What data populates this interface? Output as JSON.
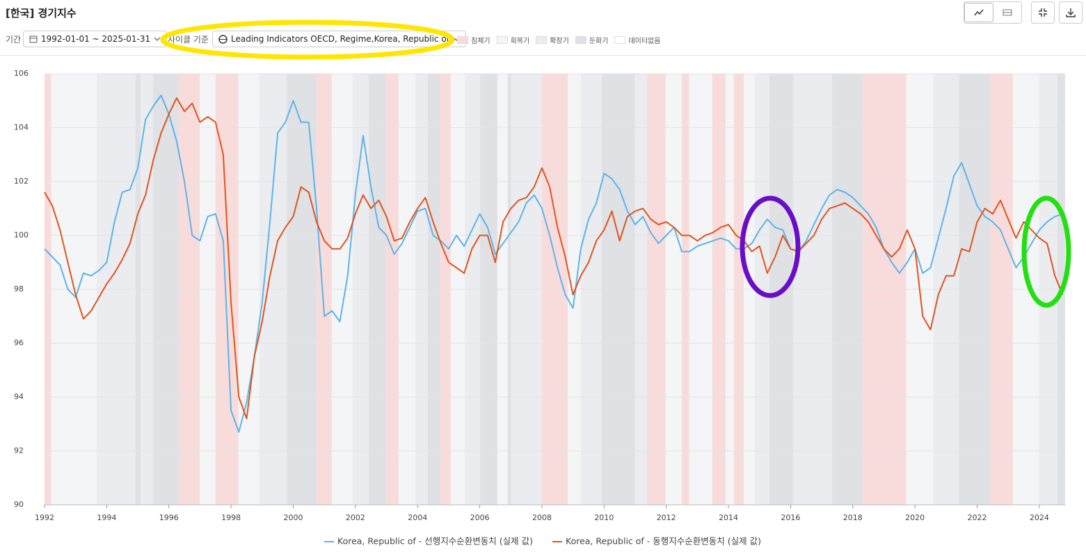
{
  "header": {
    "title": "[한국] 경기지수",
    "period_label": "기간",
    "period": "1992-01-01 ~ 2025-01-31",
    "cycle_label": "사이클 기준",
    "cycle": "Leading Indicators OECD, Regime,Korea, Republic of"
  },
  "chart_data": {
    "type": "line",
    "phases": [
      {
        "name": "침체기",
        "color": "#f8dcdc"
      },
      {
        "name": "회복기",
        "color": "#f4f5f7"
      },
      {
        "name": "확장기",
        "color": "#ebecf0"
      },
      {
        "name": "둔화기",
        "color": "#dfe1e5"
      },
      {
        "name": "데이터없음",
        "color": "#ffffff"
      }
    ],
    "bands": [
      {
        "start": 1992.0,
        "end": 1992.22,
        "phase": 0
      },
      {
        "start": 1992.22,
        "end": 1993.68,
        "phase": 1
      },
      {
        "start": 1993.68,
        "end": 1994.93,
        "phase": 2
      },
      {
        "start": 1994.93,
        "end": 1995.09,
        "phase": 3
      },
      {
        "start": 1995.09,
        "end": 1995.49,
        "phase": 2
      },
      {
        "start": 1995.49,
        "end": 1996.32,
        "phase": 3
      },
      {
        "start": 1996.32,
        "end": 1996.99,
        "phase": 0
      },
      {
        "start": 1996.99,
        "end": 1997.5,
        "phase": 1
      },
      {
        "start": 1997.5,
        "end": 1998.24,
        "phase": 0
      },
      {
        "start": 1998.24,
        "end": 1998.91,
        "phase": 1
      },
      {
        "start": 1998.91,
        "end": 1999.79,
        "phase": 2
      },
      {
        "start": 1999.79,
        "end": 2000.75,
        "phase": 3
      },
      {
        "start": 2000.75,
        "end": 2001.24,
        "phase": 0
      },
      {
        "start": 2001.24,
        "end": 2001.91,
        "phase": 1
      },
      {
        "start": 2001.91,
        "end": 2002.43,
        "phase": 2
      },
      {
        "start": 2002.43,
        "end": 2002.99,
        "phase": 3
      },
      {
        "start": 2002.99,
        "end": 2003.39,
        "phase": 0
      },
      {
        "start": 2003.39,
        "end": 2003.93,
        "phase": 1
      },
      {
        "start": 2003.93,
        "end": 2004.33,
        "phase": 2
      },
      {
        "start": 2004.33,
        "end": 2004.73,
        "phase": 3
      },
      {
        "start": 2004.73,
        "end": 2005.07,
        "phase": 0
      },
      {
        "start": 2005.07,
        "end": 2005.52,
        "phase": 1
      },
      {
        "start": 2005.52,
        "end": 2006.01,
        "phase": 2
      },
      {
        "start": 2006.01,
        "end": 2006.57,
        "phase": 3
      },
      {
        "start": 2006.57,
        "end": 2006.9,
        "phase": 1
      },
      {
        "start": 2006.9,
        "end": 2007.01,
        "phase": 3
      },
      {
        "start": 2007.01,
        "end": 2008.0,
        "phase": 2
      },
      {
        "start": 2008.0,
        "end": 2008.83,
        "phase": 0
      },
      {
        "start": 2008.83,
        "end": 2009.25,
        "phase": 1
      },
      {
        "start": 2009.25,
        "end": 2009.92,
        "phase": 2
      },
      {
        "start": 2009.92,
        "end": 2010.99,
        "phase": 3
      },
      {
        "start": 2010.99,
        "end": 2011.38,
        "phase": 2
      },
      {
        "start": 2011.38,
        "end": 2011.98,
        "phase": 0
      },
      {
        "start": 2011.98,
        "end": 2012.5,
        "phase": 1
      },
      {
        "start": 2012.5,
        "end": 2012.74,
        "phase": 0
      },
      {
        "start": 2012.74,
        "end": 2013.48,
        "phase": 1
      },
      {
        "start": 2013.48,
        "end": 2013.91,
        "phase": 0
      },
      {
        "start": 2013.91,
        "end": 2014.17,
        "phase": 1
      },
      {
        "start": 2014.17,
        "end": 2014.49,
        "phase": 0
      },
      {
        "start": 2014.49,
        "end": 2014.85,
        "phase": 1
      },
      {
        "start": 2014.85,
        "end": 2015.32,
        "phase": 2
      },
      {
        "start": 2015.32,
        "end": 2016.08,
        "phase": 3
      },
      {
        "start": 2016.08,
        "end": 2017.33,
        "phase": 2
      },
      {
        "start": 2017.33,
        "end": 2018.32,
        "phase": 3
      },
      {
        "start": 2018.32,
        "end": 2019.72,
        "phase": 0
      },
      {
        "start": 2019.72,
        "end": 2020.59,
        "phase": 1
      },
      {
        "start": 2020.59,
        "end": 2021.42,
        "phase": 2
      },
      {
        "start": 2021.42,
        "end": 2022.43,
        "phase": 3
      },
      {
        "start": 2022.43,
        "end": 2023.15,
        "phase": 0
      },
      {
        "start": 2023.15,
        "end": 2023.99,
        "phase": 1
      },
      {
        "start": 2023.99,
        "end": 2024.58,
        "phase": 2
      },
      {
        "start": 2024.58,
        "end": 2024.83,
        "phase": 3
      }
    ],
    "x": [
      1992,
      1992.25,
      1992.5,
      1992.75,
      1993,
      1993.25,
      1993.5,
      1993.75,
      1994,
      1994.25,
      1994.5,
      1994.75,
      1995,
      1995.25,
      1995.5,
      1995.75,
      1996,
      1996.25,
      1996.5,
      1996.75,
      1997,
      1997.25,
      1997.5,
      1997.75,
      1998,
      1998.25,
      1998.5,
      1998.75,
      1999,
      1999.25,
      1999.5,
      1999.75,
      2000,
      2000.25,
      2000.5,
      2000.75,
      2001,
      2001.25,
      2001.5,
      2001.75,
      2002,
      2002.25,
      2002.5,
      2002.75,
      2003,
      2003.25,
      2003.5,
      2003.75,
      2004,
      2004.25,
      2004.5,
      2004.75,
      2005,
      2005.25,
      2005.5,
      2005.75,
      2006,
      2006.25,
      2006.5,
      2006.75,
      2007,
      2007.25,
      2007.5,
      2007.75,
      2008,
      2008.25,
      2008.5,
      2008.75,
      2009,
      2009.25,
      2009.5,
      2009.75,
      2010,
      2010.25,
      2010.5,
      2010.75,
      2011,
      2011.25,
      2011.5,
      2011.75,
      2012,
      2012.25,
      2012.5,
      2012.75,
      2013,
      2013.25,
      2013.5,
      2013.75,
      2014,
      2014.25,
      2014.5,
      2014.75,
      2015,
      2015.25,
      2015.5,
      2015.75,
      2016,
      2016.25,
      2016.5,
      2016.75,
      2017,
      2017.25,
      2017.5,
      2017.75,
      2018,
      2018.25,
      2018.5,
      2018.75,
      2019,
      2019.25,
      2019.5,
      2019.75,
      2020,
      2020.25,
      2020.5,
      2020.75,
      2021,
      2021.25,
      2021.5,
      2021.75,
      2022,
      2022.25,
      2022.5,
      2022.75,
      2023,
      2023.25,
      2023.5,
      2023.75,
      2024,
      2024.25,
      2024.5,
      2024.75
    ],
    "series": [
      {
        "name": "Korea, Republic of - 선행지수순환변동치 (실제 값)",
        "color": "#5ab4ea",
        "values": [
          99.5,
          99.2,
          98.9,
          98.0,
          97.7,
          98.6,
          98.5,
          98.7,
          99.0,
          100.5,
          101.6,
          101.7,
          102.5,
          104.3,
          104.8,
          105.2,
          104.5,
          103.5,
          102.0,
          100.0,
          99.8,
          100.7,
          100.8,
          99.8,
          93.5,
          92.7,
          93.8,
          95.5,
          97.5,
          100.5,
          103.8,
          104.2,
          105.0,
          104.2,
          104.2,
          101.0,
          97.0,
          97.2,
          96.8,
          98.5,
          101.5,
          103.7,
          101.8,
          100.3,
          100.0,
          99.3,
          99.7,
          100.3,
          100.9,
          101.0,
          100.0,
          99.8,
          99.5,
          100.0,
          99.6,
          100.2,
          100.8,
          100.3,
          99.3,
          99.7,
          100.1,
          100.5,
          101.2,
          101.5,
          101.0,
          100.0,
          98.8,
          97.8,
          97.3,
          99.5,
          100.6,
          101.2,
          102.3,
          102.1,
          101.7,
          100.9,
          100.4,
          100.7,
          100.1,
          99.7,
          100.0,
          100.3,
          99.4,
          99.4,
          99.6,
          99.7,
          99.8,
          99.9,
          99.8,
          99.5,
          99.5,
          99.7,
          100.2,
          100.6,
          100.3,
          100.2,
          99.5,
          99.4,
          99.8,
          100.4,
          101.0,
          101.5,
          101.7,
          101.6,
          101.4,
          101.1,
          100.8,
          100.3,
          99.5,
          99.0,
          98.6,
          99.0,
          99.5,
          98.6,
          98.8,
          99.9,
          101.0,
          102.2,
          102.7,
          101.9,
          101.1,
          100.7,
          100.5,
          100.2,
          99.5,
          98.8,
          99.2,
          99.7,
          100.2,
          100.5,
          100.7,
          100.8
        ]
      },
      {
        "name": "Korea, Republic of - 동행지수순환변동치 (실제 값)",
        "color": "#e0541c",
        "values": [
          101.6,
          101.1,
          100.2,
          99.0,
          97.8,
          96.9,
          97.2,
          97.7,
          98.2,
          98.6,
          99.1,
          99.7,
          100.8,
          101.5,
          102.8,
          103.8,
          104.5,
          105.1,
          104.6,
          104.9,
          104.2,
          104.4,
          104.2,
          103.0,
          97.5,
          94.0,
          93.2,
          95.5,
          96.8,
          98.5,
          99.8,
          100.3,
          100.7,
          101.8,
          101.6,
          100.5,
          99.8,
          99.5,
          99.5,
          99.9,
          100.8,
          101.5,
          101.0,
          101.3,
          100.7,
          99.8,
          99.9,
          100.5,
          101.0,
          101.4,
          100.5,
          99.7,
          99.0,
          98.8,
          98.6,
          99.5,
          100.0,
          100.0,
          99.0,
          100.5,
          101.0,
          101.3,
          101.4,
          101.8,
          102.5,
          101.8,
          100.3,
          99.2,
          97.8,
          98.5,
          99.0,
          99.8,
          100.2,
          100.9,
          99.8,
          100.7,
          100.9,
          101.0,
          100.6,
          100.4,
          100.5,
          100.3,
          100.0,
          100.0,
          99.8,
          100.0,
          100.1,
          100.3,
          100.4,
          100.0,
          99.8,
          99.4,
          99.6,
          98.6,
          99.2,
          100.0,
          99.5,
          99.4,
          99.7,
          100.0,
          100.6,
          101.0,
          101.1,
          101.2,
          101.0,
          100.8,
          100.5,
          100.0,
          99.5,
          99.2,
          99.5,
          100.2,
          99.5,
          97.0,
          96.5,
          97.8,
          98.5,
          98.5,
          99.5,
          99.4,
          100.5,
          101.0,
          100.8,
          101.3,
          100.6,
          99.9,
          100.5,
          100.2,
          99.9,
          99.7,
          98.5,
          97.8
        ]
      }
    ],
    "xlim": [
      1992,
      2024.83
    ],
    "xticks": [
      1992,
      1994,
      1996,
      1998,
      2000,
      2002,
      2004,
      2006,
      2008,
      2010,
      2012,
      2014,
      2016,
      2018,
      2020,
      2022,
      2024
    ],
    "ylim": [
      90,
      106
    ],
    "yticks": [
      90,
      92,
      94,
      96,
      98,
      100,
      102,
      104,
      106
    ],
    "grid": true
  }
}
